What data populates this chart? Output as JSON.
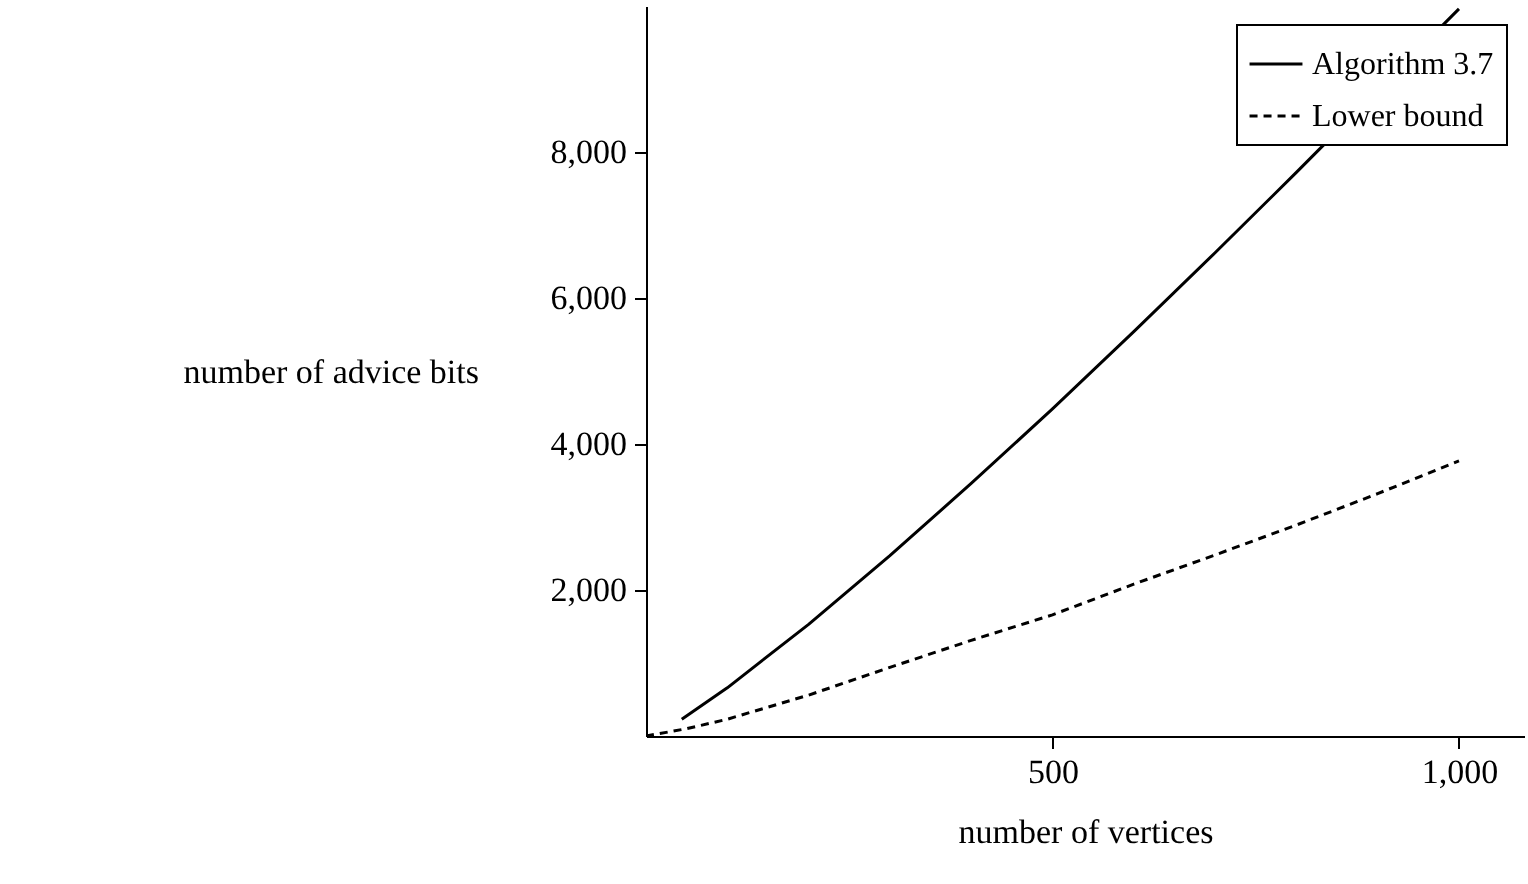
{
  "chart_data": {
    "type": "line",
    "xlabel": "number of vertices",
    "ylabel": "number of advice bits",
    "xlim": [
      0,
      1080
    ],
    "ylim": [
      0,
      10000
    ],
    "xticks": [
      500,
      {
        "value": 1000,
        "label": "1,000"
      }
    ],
    "yticks": [
      {
        "value": 2000,
        "label": "2,000"
      },
      {
        "value": 4000,
        "label": "4,000"
      },
      {
        "value": 6000,
        "label": "6,000"
      },
      {
        "value": 8000,
        "label": "8,000"
      }
    ],
    "grid": false,
    "legend": "top right",
    "marker": "none",
    "series": [
      {
        "name": "Algorithm 3.7",
        "color": "#000000",
        "line_style": "solid",
        "x": [
          44,
          100,
          200,
          300,
          400,
          500,
          600,
          700,
          800,
          1000
        ],
        "values": [
          230,
          660,
          1530,
          2470,
          3460,
          4480,
          5540,
          6620,
          7720,
          9960
        ]
      },
      {
        "name": "Lower bound",
        "color": "#000000",
        "line_style": "dashed",
        "x": [
          0,
          50,
          100,
          200,
          300,
          400,
          500,
          600,
          700,
          800,
          900,
          1000
        ],
        "values": [
          0,
          100,
          230,
          560,
          940,
          1310,
          1660,
          2080,
          2480,
          2890,
          3320,
          3770
        ]
      }
    ]
  }
}
